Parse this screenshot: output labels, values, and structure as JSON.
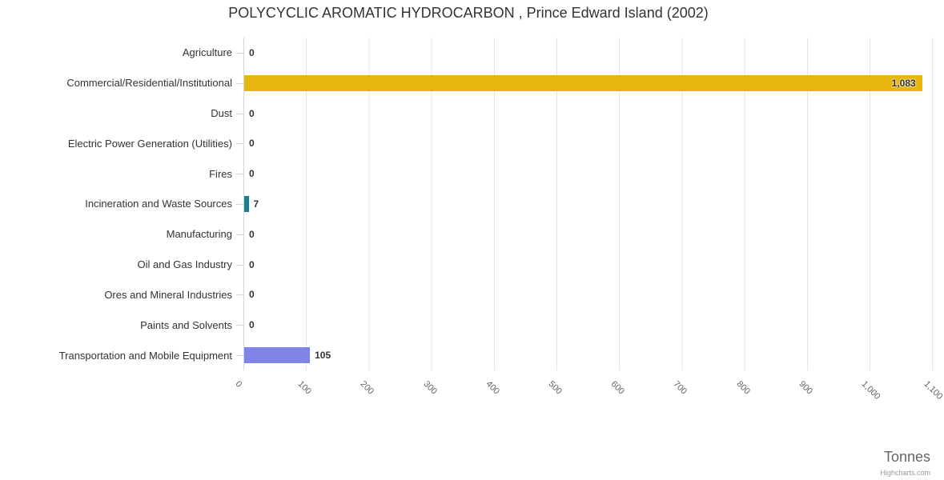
{
  "credits": "Highcharts.com",
  "chart_data": {
    "type": "bar",
    "title": "POLYCYCLIC AROMATIC HYDROCARBON , Prince Edward Island (2002)",
    "categories": [
      "Agriculture",
      "Commercial/Residential/Institutional",
      "Dust",
      "Electric Power Generation (Utilities)",
      "Fires",
      "Incineration and Waste Sources",
      "Manufacturing",
      "Oil and Gas Industry",
      "Ores and Mineral Industries",
      "Paints and Solvents",
      "Transportation and Mobile Equipment"
    ],
    "values": [
      0,
      1083,
      0,
      0,
      0,
      7,
      0,
      0,
      0,
      0,
      105
    ],
    "data_labels": [
      "0",
      "1,083",
      "0",
      "0",
      "0",
      "7",
      "0",
      "0",
      "0",
      "0",
      "105"
    ],
    "colors": [
      null,
      "#e7b710",
      null,
      null,
      null,
      "#18838c",
      null,
      null,
      null,
      null,
      "#8085e9"
    ],
    "x_ticks": [
      "0",
      "100",
      "200",
      "300",
      "400",
      "500",
      "600",
      "700",
      "800",
      "900",
      "1,000",
      "1,100"
    ],
    "xlabel": "Tonnes",
    "xlim": [
      0,
      1100
    ],
    "grid": true,
    "legend": false,
    "grid_color": "#e6e6e6",
    "axis_line_color": "#ccd6eb"
  }
}
